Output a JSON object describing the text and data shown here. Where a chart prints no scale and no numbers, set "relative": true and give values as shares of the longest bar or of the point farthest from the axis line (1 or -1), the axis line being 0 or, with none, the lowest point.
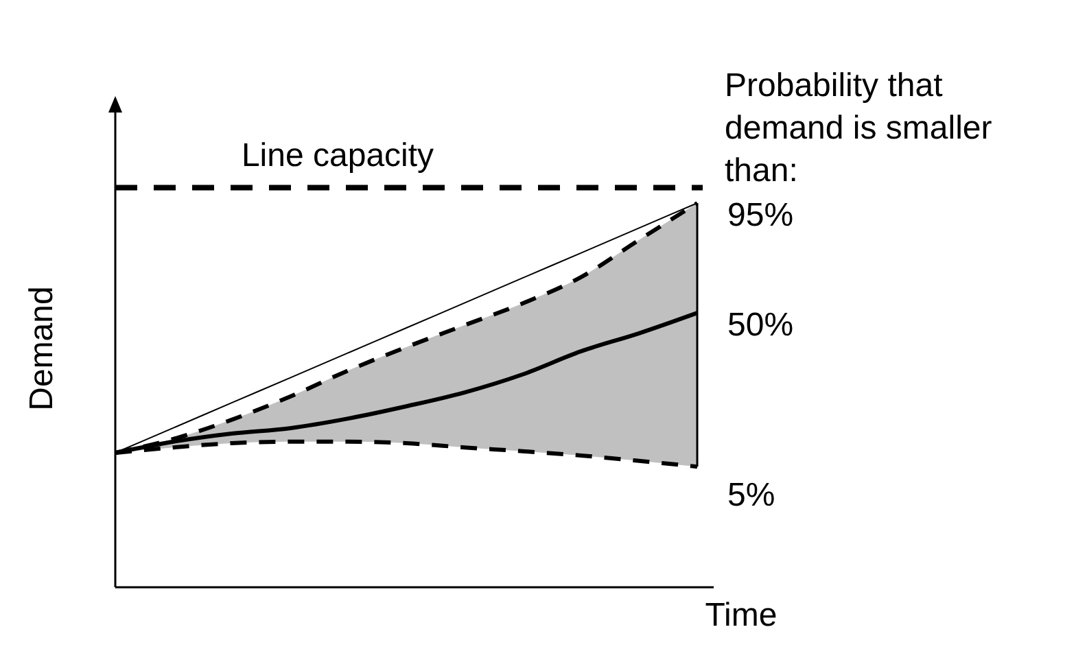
{
  "chart_data": {
    "type": "line",
    "relative": true,
    "xlabel": "Time",
    "ylabel": "Demand",
    "legend_title": "Probability that demand is smaller than:",
    "legend": "right",
    "categories": [
      null,
      null,
      null,
      null,
      null,
      null,
      null,
      null,
      null,
      null,
      null
    ],
    "series": [
      {
        "name": "95%",
        "color": "#000000",
        "line_style": "dashed",
        "values": [
          0.35,
          0.386,
          0.436,
          0.496,
          0.564,
          0.625,
          0.682,
          0.739,
          0.807,
          0.904,
          1
        ]
      },
      {
        "name": "50%",
        "color": "#000000",
        "line_style": "solid",
        "values": [
          0.35,
          0.379,
          0.4,
          0.414,
          0.439,
          0.471,
          0.507,
          0.554,
          0.614,
          0.661,
          0.714
        ],
        "lower": [
          0.35,
          0.364,
          0.375,
          0.379,
          0.379,
          0.375,
          0.364,
          0.354,
          0.343,
          0.329,
          0.314
        ],
        "upper": [
          0.35,
          0.386,
          0.436,
          0.496,
          0.564,
          0.625,
          0.682,
          0.739,
          0.807,
          0.904,
          1
        ]
      },
      {
        "name": "5%",
        "color": "#000000",
        "line_style": "dashed",
        "values": [
          0.35,
          0.364,
          0.375,
          0.379,
          0.379,
          0.375,
          0.364,
          0.354,
          0.343,
          0.329,
          0.314
        ]
      },
      {
        "color": "#000000",
        "line_style": "solid",
        "values": [
          0.35,
          0.415,
          0.48,
          0.545,
          0.61,
          0.675,
          0.74,
          0.805,
          0.87,
          0.935,
          1
        ]
      }
    ],
    "ref_lines": [
      {
        "axis": "y",
        "value": 1.04,
        "label": "Line capacity",
        "line_style": "dashed",
        "color": "#000000"
      }
    ]
  }
}
